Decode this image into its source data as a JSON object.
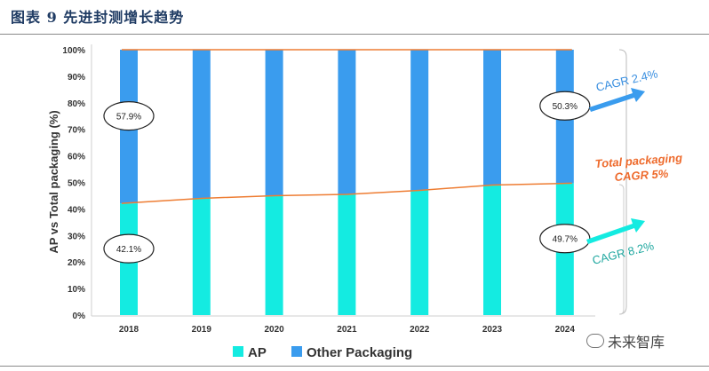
{
  "figure_title": "图表 9  先进封测增长趋势",
  "watermark": "未来智库",
  "colors": {
    "ap": "#14ebe1",
    "other": "#3a9cee",
    "line": "#ee7d33",
    "annotation_orange": "#ee6b2d",
    "annotation_blue": "#3a8fe0",
    "annotation_teal": "#20a8a0",
    "title": "#1f3b63"
  },
  "chart_data": {
    "type": "bar",
    "stacked": true,
    "ylabel": "AP vs Total packaging (%)",
    "xlabel": "",
    "ylim": [
      0,
      100
    ],
    "yticks": [
      "0%",
      "10%",
      "20%",
      "30%",
      "40%",
      "50%",
      "60%",
      "70%",
      "80%",
      "90%",
      "100%"
    ],
    "categories": [
      "2018",
      "2019",
      "2020",
      "2021",
      "2022",
      "2023",
      "2024"
    ],
    "series": [
      {
        "name": "AP",
        "values": [
          42.1,
          44.0,
          45.0,
          45.5,
          47.0,
          49.0,
          49.7
        ]
      },
      {
        "name": "Other Packaging",
        "values": [
          57.9,
          56.0,
          55.0,
          54.5,
          53.0,
          51.0,
          50.3
        ]
      }
    ],
    "line": {
      "values": [
        42.1,
        44.0,
        45.0,
        45.5,
        47.0,
        49.0,
        49.7
      ]
    },
    "total_line": {
      "values": [
        100,
        100,
        100,
        100,
        100,
        100,
        100
      ]
    },
    "data_labels": [
      {
        "text": "57.9%",
        "category": "2018",
        "series": "Other Packaging"
      },
      {
        "text": "42.1%",
        "category": "2018",
        "series": "AP"
      },
      {
        "text": "50.3%",
        "category": "2024",
        "series": "Other Packaging"
      },
      {
        "text": "49.7%",
        "category": "2024",
        "series": "AP"
      }
    ],
    "annotations": {
      "other_cagr": "CAGR 2.4%",
      "total_cagr_line1": "Total packaging",
      "total_cagr_line2": "CAGR 5%",
      "ap_cagr": "CAGR 8.2%"
    },
    "legend": {
      "position": "bottom",
      "entries": [
        "AP",
        "Other Packaging"
      ]
    },
    "grid": false
  }
}
